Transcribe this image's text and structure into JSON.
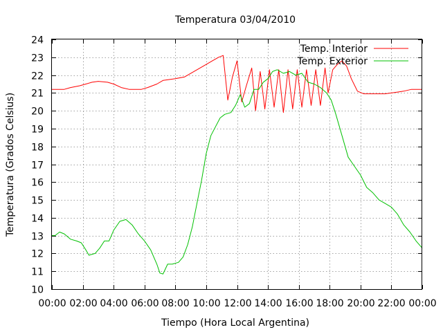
{
  "chart_data": {
    "type": "line",
    "title": "Temperatura 03/04/2010",
    "xlabel": "Tiempo (Hora Local Argentina)",
    "ylabel": "Temperatura (Grados Celsius)",
    "xlim": [
      0,
      24
    ],
    "ylim": [
      10,
      24
    ],
    "x_tick_values": [
      0,
      2,
      4,
      6,
      8,
      10,
      12,
      14,
      16,
      18,
      20,
      22,
      24
    ],
    "x_tick_labels": [
      "00:00",
      "02:00",
      "04:00",
      "06:00",
      "08:00",
      "10:00",
      "12:00",
      "14:00",
      "16:00",
      "18:00",
      "20:00",
      "22:00",
      "00:00"
    ],
    "y_tick_values": [
      10,
      11,
      12,
      13,
      14,
      15,
      16,
      17,
      18,
      19,
      20,
      21,
      22,
      23,
      24
    ],
    "y_tick_labels": [
      "10",
      "11",
      "12",
      "13",
      "14",
      "15",
      "16",
      "17",
      "18",
      "19",
      "20",
      "21",
      "22",
      "23",
      "24"
    ],
    "grid": true,
    "legend_position": "top-right",
    "series": [
      {
        "name": "Temp. Interior",
        "color": "#ff0000",
        "points": [
          [
            0,
            21.2
          ],
          [
            0.8,
            21.2
          ],
          [
            1.2,
            21.3
          ],
          [
            1.8,
            21.4
          ],
          [
            2.2,
            21.5
          ],
          [
            2.6,
            21.6
          ],
          [
            3.0,
            21.65
          ],
          [
            3.6,
            21.6
          ],
          [
            4.0,
            21.5
          ],
          [
            4.5,
            21.3
          ],
          [
            5.0,
            21.2
          ],
          [
            5.8,
            21.2
          ],
          [
            6.2,
            21.3
          ],
          [
            6.8,
            21.5
          ],
          [
            7.2,
            21.7
          ],
          [
            8.0,
            21.8
          ],
          [
            8.6,
            21.9
          ],
          [
            9.2,
            22.2
          ],
          [
            9.8,
            22.5
          ],
          [
            10.4,
            22.8
          ],
          [
            10.8,
            23.0
          ],
          [
            11.1,
            23.1
          ],
          [
            11.4,
            20.6
          ],
          [
            11.7,
            21.9
          ],
          [
            12.0,
            22.8
          ],
          [
            12.3,
            20.5
          ],
          [
            12.6,
            21.4
          ],
          [
            12.95,
            22.4
          ],
          [
            13.2,
            20.0
          ],
          [
            13.5,
            22.2
          ],
          [
            13.8,
            20.1
          ],
          [
            14.1,
            22.3
          ],
          [
            14.4,
            20.2
          ],
          [
            14.7,
            22.3
          ],
          [
            15.0,
            19.9
          ],
          [
            15.3,
            22.3
          ],
          [
            15.6,
            20.1
          ],
          [
            15.9,
            22.3
          ],
          [
            16.2,
            20.2
          ],
          [
            16.5,
            22.3
          ],
          [
            16.8,
            20.3
          ],
          [
            17.1,
            22.3
          ],
          [
            17.4,
            20.3
          ],
          [
            17.7,
            22.4
          ],
          [
            17.9,
            21.0
          ],
          [
            18.2,
            22.3
          ],
          [
            18.5,
            22.6
          ],
          [
            18.8,
            22.8
          ],
          [
            19.1,
            22.5
          ],
          [
            19.4,
            21.8
          ],
          [
            19.8,
            21.1
          ],
          [
            20.2,
            20.95
          ],
          [
            21.0,
            20.95
          ],
          [
            21.6,
            20.95
          ],
          [
            22.0,
            21.0
          ],
          [
            22.4,
            21.05
          ],
          [
            22.8,
            21.1
          ],
          [
            23.3,
            21.2
          ],
          [
            24.0,
            21.2
          ]
        ]
      },
      {
        "name": "Temp. Exterior",
        "color": "#00c000",
        "points": [
          [
            0,
            13.0
          ],
          [
            0.2,
            13.0
          ],
          [
            0.5,
            13.2
          ],
          [
            0.8,
            13.1
          ],
          [
            1.2,
            12.8
          ],
          [
            1.6,
            12.7
          ],
          [
            1.9,
            12.6
          ],
          [
            2.2,
            12.2
          ],
          [
            2.4,
            11.9
          ],
          [
            2.8,
            12.0
          ],
          [
            3.1,
            12.3
          ],
          [
            3.4,
            12.7
          ],
          [
            3.7,
            12.7
          ],
          [
            4.0,
            13.3
          ],
          [
            4.4,
            13.8
          ],
          [
            4.8,
            13.9
          ],
          [
            5.2,
            13.6
          ],
          [
            5.6,
            13.1
          ],
          [
            6.0,
            12.7
          ],
          [
            6.4,
            12.2
          ],
          [
            6.8,
            11.4
          ],
          [
            7.0,
            10.9
          ],
          [
            7.2,
            10.85
          ],
          [
            7.5,
            11.4
          ],
          [
            7.8,
            11.4
          ],
          [
            8.2,
            11.5
          ],
          [
            8.5,
            11.8
          ],
          [
            8.8,
            12.5
          ],
          [
            9.1,
            13.5
          ],
          [
            9.4,
            14.8
          ],
          [
            9.7,
            16.1
          ],
          [
            10.0,
            17.6
          ],
          [
            10.3,
            18.6
          ],
          [
            10.6,
            19.1
          ],
          [
            10.9,
            19.6
          ],
          [
            11.2,
            19.8
          ],
          [
            11.6,
            19.9
          ],
          [
            11.9,
            20.3
          ],
          [
            12.2,
            20.9
          ],
          [
            12.5,
            20.2
          ],
          [
            12.8,
            20.4
          ],
          [
            13.1,
            21.2
          ],
          [
            13.4,
            21.2
          ],
          [
            13.7,
            21.6
          ],
          [
            14.0,
            21.8
          ],
          [
            14.3,
            22.2
          ],
          [
            14.6,
            22.3
          ],
          [
            15.0,
            22.1
          ],
          [
            15.4,
            22.2
          ],
          [
            15.8,
            22.0
          ],
          [
            16.2,
            22.1
          ],
          [
            16.6,
            21.6
          ],
          [
            17.0,
            21.5
          ],
          [
            17.4,
            21.3
          ],
          [
            17.8,
            21.0
          ],
          [
            18.1,
            20.6
          ],
          [
            18.4,
            19.8
          ],
          [
            18.8,
            18.6
          ],
          [
            19.2,
            17.4
          ],
          [
            19.6,
            16.9
          ],
          [
            20.0,
            16.4
          ],
          [
            20.4,
            15.7
          ],
          [
            20.8,
            15.4
          ],
          [
            21.2,
            15.0
          ],
          [
            21.6,
            14.8
          ],
          [
            22.0,
            14.6
          ],
          [
            22.4,
            14.2
          ],
          [
            22.8,
            13.6
          ],
          [
            23.2,
            13.2
          ],
          [
            23.6,
            12.7
          ],
          [
            24.0,
            12.3
          ]
        ]
      }
    ]
  }
}
